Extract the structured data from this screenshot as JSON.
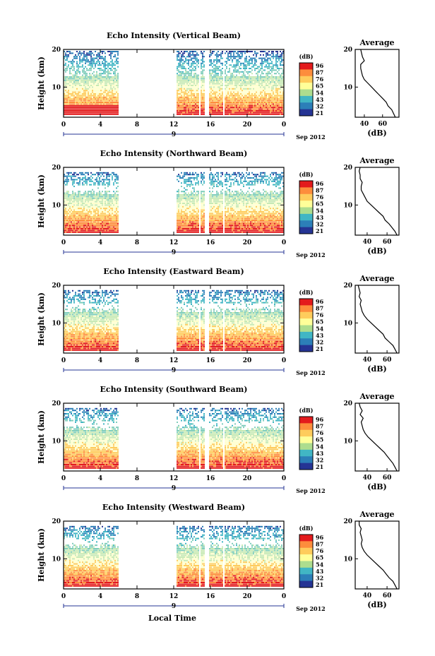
{
  "common": {
    "xticks": [
      "0",
      "4",
      "8",
      "12",
      "16",
      "20",
      "0"
    ],
    "date_day": "9",
    "date_label": "Sep 2012",
    "xlabel": "Local Time",
    "ylabel": "Height (km)",
    "colorbar_unit": "(dB)",
    "colorbar_ticks": [
      "96",
      "87",
      "76",
      "65",
      "54",
      "43",
      "32",
      "21"
    ],
    "colorbar_colors": [
      "#e31a1c",
      "#fd8d3c",
      "#fecc5c",
      "#ffff99",
      "#addd8e",
      "#41b6c4",
      "#2c7fb8",
      "#253494"
    ],
    "avg_title": "Average",
    "avg_xlabel": "(dB)",
    "avg_xticks": [
      "40",
      "60"
    ],
    "yticks": [
      "20",
      "10"
    ]
  },
  "chart_data": [
    {
      "type": "heatmap",
      "title": "Echo Intensity (Vertical Beam)",
      "ylabel": "Height (km)",
      "xlabel": "",
      "x_range_hours": [
        0,
        24
      ],
      "y_range_km": [
        2,
        20
      ],
      "gaps_hours": [
        [
          6,
          12.3
        ],
        [
          14.7,
          14.9
        ],
        [
          15.3,
          15.7
        ],
        [
          17.3,
          17.5
        ]
      ],
      "colorbar_range_dB": [
        21,
        96
      ],
      "average_profile": {
        "title": "Average",
        "xlabel": "(dB)",
        "x_range": [
          30,
          78
        ],
        "heights_km": [
          2,
          3,
          4,
          5,
          6,
          7,
          8,
          9,
          10,
          11,
          12,
          13,
          14,
          15,
          16,
          17,
          18,
          19,
          20
        ],
        "values_dB": [
          74,
          72,
          70,
          66,
          64,
          60,
          56,
          52,
          48,
          44,
          40,
          38,
          37,
          36,
          36,
          40,
          38,
          37,
          36
        ]
      }
    },
    {
      "type": "heatmap",
      "title": "Echo Intensity (Northward Beam)",
      "ylabel": "Height (km)",
      "x_range_hours": [
        0,
        24
      ],
      "y_range_km": [
        2,
        20
      ],
      "gaps_hours": [
        [
          6,
          12.3
        ],
        [
          14.7,
          14.9
        ],
        [
          15.3,
          15.7
        ],
        [
          17.3,
          17.5
        ]
      ],
      "colorbar_range_dB": [
        21,
        96
      ],
      "average_profile": {
        "title": "Average",
        "xlabel": "(dB)",
        "x_range": [
          28,
          72
        ],
        "heights_km": [
          2,
          3,
          4,
          5,
          6,
          7,
          8,
          9,
          10,
          11,
          12,
          13,
          14,
          15,
          16,
          17,
          18,
          19,
          20
        ],
        "values_dB": [
          70,
          68,
          65,
          62,
          58,
          56,
          52,
          48,
          44,
          40,
          38,
          36,
          34,
          34,
          35,
          33,
          33,
          32,
          33
        ]
      }
    },
    {
      "type": "heatmap",
      "title": "Echo Intensity (Eastward Beam)",
      "ylabel": "Height (km)",
      "x_range_hours": [
        0,
        24
      ],
      "y_range_km": [
        2,
        20
      ],
      "gaps_hours": [
        [
          6,
          12.3
        ],
        [
          14.7,
          14.9
        ],
        [
          15.3,
          15.7
        ],
        [
          17.3,
          17.5
        ]
      ],
      "colorbar_range_dB": [
        21,
        96
      ],
      "average_profile": {
        "title": "Average",
        "xlabel": "(dB)",
        "x_range": [
          28,
          72
        ],
        "heights_km": [
          2,
          3,
          4,
          5,
          6,
          7,
          8,
          9,
          10,
          11,
          12,
          13,
          14,
          15,
          16,
          17,
          18,
          19,
          20
        ],
        "values_dB": [
          70,
          68,
          66,
          62,
          58,
          56,
          52,
          48,
          44,
          40,
          37,
          35,
          34,
          33,
          34,
          32,
          33,
          32,
          31
        ]
      }
    },
    {
      "type": "heatmap",
      "title": "Echo Intensity (Southward Beam)",
      "ylabel": "Height (km)",
      "x_range_hours": [
        0,
        24
      ],
      "y_range_km": [
        2,
        20
      ],
      "gaps_hours": [
        [
          6,
          12.3
        ],
        [
          14.7,
          14.9
        ],
        [
          15.3,
          15.7
        ],
        [
          17.3,
          17.5
        ]
      ],
      "colorbar_range_dB": [
        21,
        96
      ],
      "average_profile": {
        "title": "Average",
        "xlabel": "(dB)",
        "x_range": [
          28,
          72
        ],
        "heights_km": [
          2,
          3,
          4,
          5,
          6,
          7,
          8,
          9,
          10,
          11,
          12,
          13,
          14,
          15,
          16,
          17,
          18,
          19,
          20
        ],
        "values_dB": [
          70,
          68,
          66,
          63,
          60,
          57,
          53,
          49,
          45,
          41,
          38,
          36,
          35,
          34,
          36,
          33,
          35,
          33,
          32
        ]
      }
    },
    {
      "type": "heatmap",
      "title": "Echo Intensity (Westward Beam)",
      "ylabel": "Height (km)",
      "xlabel": "Local Time",
      "x_range_hours": [
        0,
        24
      ],
      "y_range_km": [
        2,
        20
      ],
      "gaps_hours": [
        [
          6,
          12.3
        ],
        [
          14.7,
          14.9
        ],
        [
          15.3,
          15.7
        ],
        [
          17.3,
          17.5
        ]
      ],
      "colorbar_range_dB": [
        21,
        96
      ],
      "average_profile": {
        "title": "Average",
        "xlabel": "(dB)",
        "x_range": [
          28,
          72
        ],
        "heights_km": [
          2,
          3,
          4,
          5,
          6,
          7,
          8,
          9,
          10,
          11,
          12,
          13,
          14,
          15,
          16,
          17,
          18,
          19,
          20
        ],
        "values_dB": [
          70,
          68,
          66,
          62,
          59,
          56,
          52,
          48,
          44,
          40,
          37,
          35,
          34,
          35,
          34,
          33,
          34,
          32,
          32
        ]
      }
    }
  ]
}
